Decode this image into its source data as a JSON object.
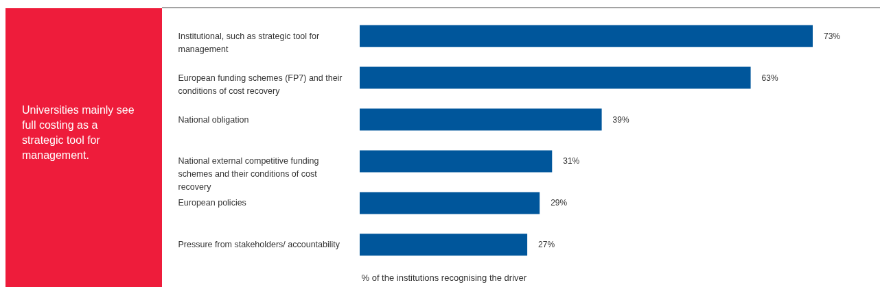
{
  "chart_data": {
    "type": "bar",
    "orientation": "horizontal",
    "categories": [
      "Institutional, such as strategic tool for management",
      "European funding schemes (FP7) and their conditions of cost recovery",
      "National obligation",
      "National external competitive funding schemes and their conditions of cost recovery",
      "European policies",
      "Pressure from stakeholders/ accountability"
    ],
    "values": [
      73,
      63,
      39,
      31,
      29,
      27
    ],
    "value_labels": [
      "73%",
      "63%",
      "39%",
      "31%",
      "29%",
      "27%"
    ],
    "color": "#00569b",
    "xlabel": "% of the institutions recognising the driver",
    "annotations": [
      "Universities mainly see full costing as a strategic tool for management."
    ]
  }
}
